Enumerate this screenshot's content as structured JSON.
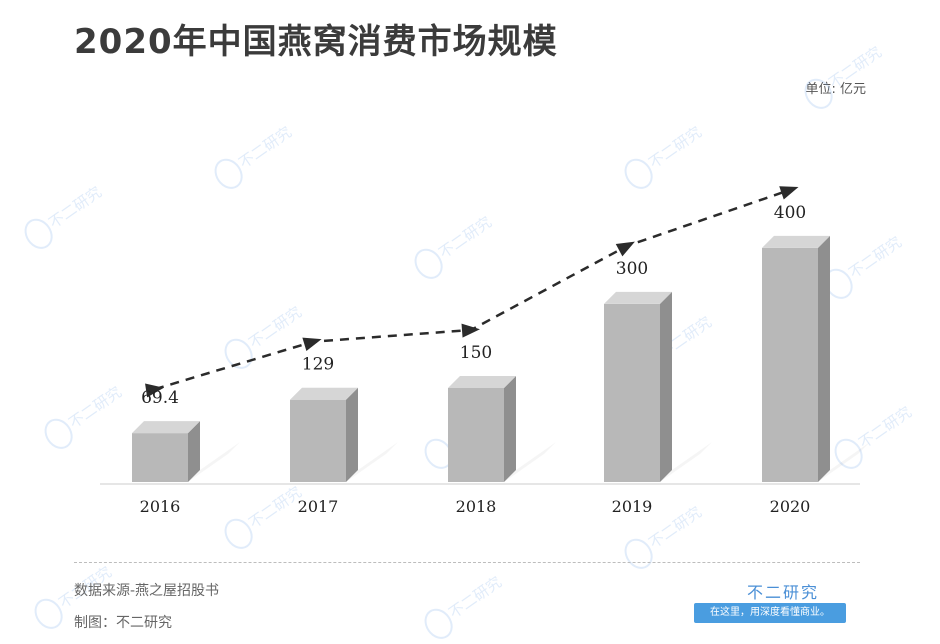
{
  "header": {
    "title": "2020年中国燕窝消费市场规模",
    "unit": "单位: 亿元"
  },
  "footer": {
    "source": "数据来源-燕之屋招股书",
    "maker": "制图：不二研究",
    "brand_name": "不二研究",
    "brand_slogan": "在这里，用深度看懂商业。"
  },
  "watermark_text": "不二研究",
  "colors": {
    "bar_front": "#b8b8b8",
    "bar_side": "#8f8f8f",
    "bar_top": "#d6d6d6",
    "trend_line": "#2b2b2b",
    "brand": "#4a8fd6"
  },
  "chart_data": {
    "type": "bar",
    "categories": [
      "2016",
      "2017",
      "2018",
      "2019",
      "2020"
    ],
    "values": [
      69.4,
      129,
      150,
      300,
      400
    ],
    "value_labels": [
      "69.4",
      "129",
      "150",
      "300",
      "400"
    ],
    "title": "2020年中国燕窝消费市场规模",
    "xlabel": "",
    "ylabel": "",
    "unit": "单位: 亿元",
    "ylim": [
      0,
      450
    ],
    "grid": false,
    "legend": "none",
    "style": "3d-bar-with-dashed-trend-arrow"
  }
}
